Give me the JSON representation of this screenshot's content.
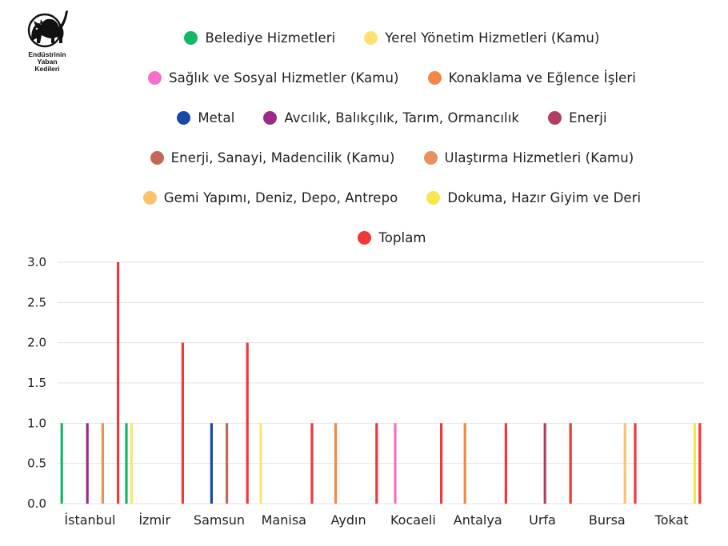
{
  "logo": {
    "text_lines": [
      "Endüstrinin",
      "Yaban",
      "Kedileri"
    ]
  },
  "chart_data": {
    "type": "bar",
    "categories": [
      "İstanbul",
      "İzmir",
      "Samsun",
      "Manisa",
      "Aydın",
      "Kocaeli",
      "Antalya",
      "Urfa",
      "Bursa",
      "Tokat"
    ],
    "ylim": [
      0,
      3
    ],
    "yticks": [
      "0.0",
      "0.5",
      "1.0",
      "1.5",
      "2.0",
      "2.5",
      "3.0"
    ],
    "ytick_values": [
      0,
      0.5,
      1,
      1.5,
      2,
      2.5,
      3
    ],
    "grid": true,
    "legend_position": "top",
    "series": [
      {
        "name": "Belediye Hizmetleri",
        "color": "#12b76a",
        "values": [
          1,
          1,
          0,
          0,
          0,
          0,
          0,
          0,
          0,
          0
        ]
      },
      {
        "name": "Yerel Yönetim Hizmetleri (Kamu)",
        "color": "#fde272",
        "values": [
          0,
          1,
          0,
          1,
          0,
          0,
          0,
          0,
          0,
          0
        ]
      },
      {
        "name": "Sağlık ve Sosyal Hizmetler (Kamu)",
        "color": "#f670c7",
        "values": [
          0,
          0,
          0,
          0,
          0,
          1,
          0,
          0,
          0,
          0
        ]
      },
      {
        "name": "Konaklama ve Eğlence İşleri",
        "color": "#f38744",
        "values": [
          0,
          0,
          0,
          0,
          1,
          0,
          1,
          0,
          0,
          0
        ]
      },
      {
        "name": "Metal",
        "color": "#1849a9",
        "values": [
          0,
          0,
          1,
          0,
          0,
          0,
          0,
          0,
          0,
          0
        ]
      },
      {
        "name": "Avcılık, Balıkçılık, Tarım, Ormancılık",
        "color": "#9e2a88",
        "values": [
          1,
          0,
          0,
          0,
          0,
          0,
          0,
          0,
          0,
          0
        ]
      },
      {
        "name": "Enerji",
        "color": "#b13f63",
        "values": [
          0,
          0,
          0,
          0,
          0,
          0,
          0,
          1,
          0,
          0
        ]
      },
      {
        "name": "Enerji, Sanayi, Madencilik (Kamu)",
        "color": "#c4675a",
        "values": [
          0,
          0,
          1,
          0,
          0,
          0,
          0,
          0,
          0,
          0
        ]
      },
      {
        "name": "Ulaştırma Hizmetleri (Kamu)",
        "color": "#e8915e",
        "values": [
          1,
          0,
          0,
          0,
          0,
          0,
          0,
          0,
          0,
          0
        ]
      },
      {
        "name": "Gemi Yapımı, Deniz, Depo, Antrepo",
        "color": "#fdc26b",
        "values": [
          0,
          0,
          0,
          0,
          0,
          0,
          0,
          0,
          1,
          0
        ]
      },
      {
        "name": "Dokuma, Hazır Giyim ve Deri",
        "color": "#f6e74e",
        "values": [
          0,
          0,
          0,
          0,
          0,
          0,
          0,
          0,
          0,
          1
        ]
      },
      {
        "name": "Toplam",
        "color": "#ef3838",
        "values": [
          3,
          2,
          2,
          1,
          1,
          1,
          1,
          1,
          1,
          1
        ]
      }
    ]
  }
}
